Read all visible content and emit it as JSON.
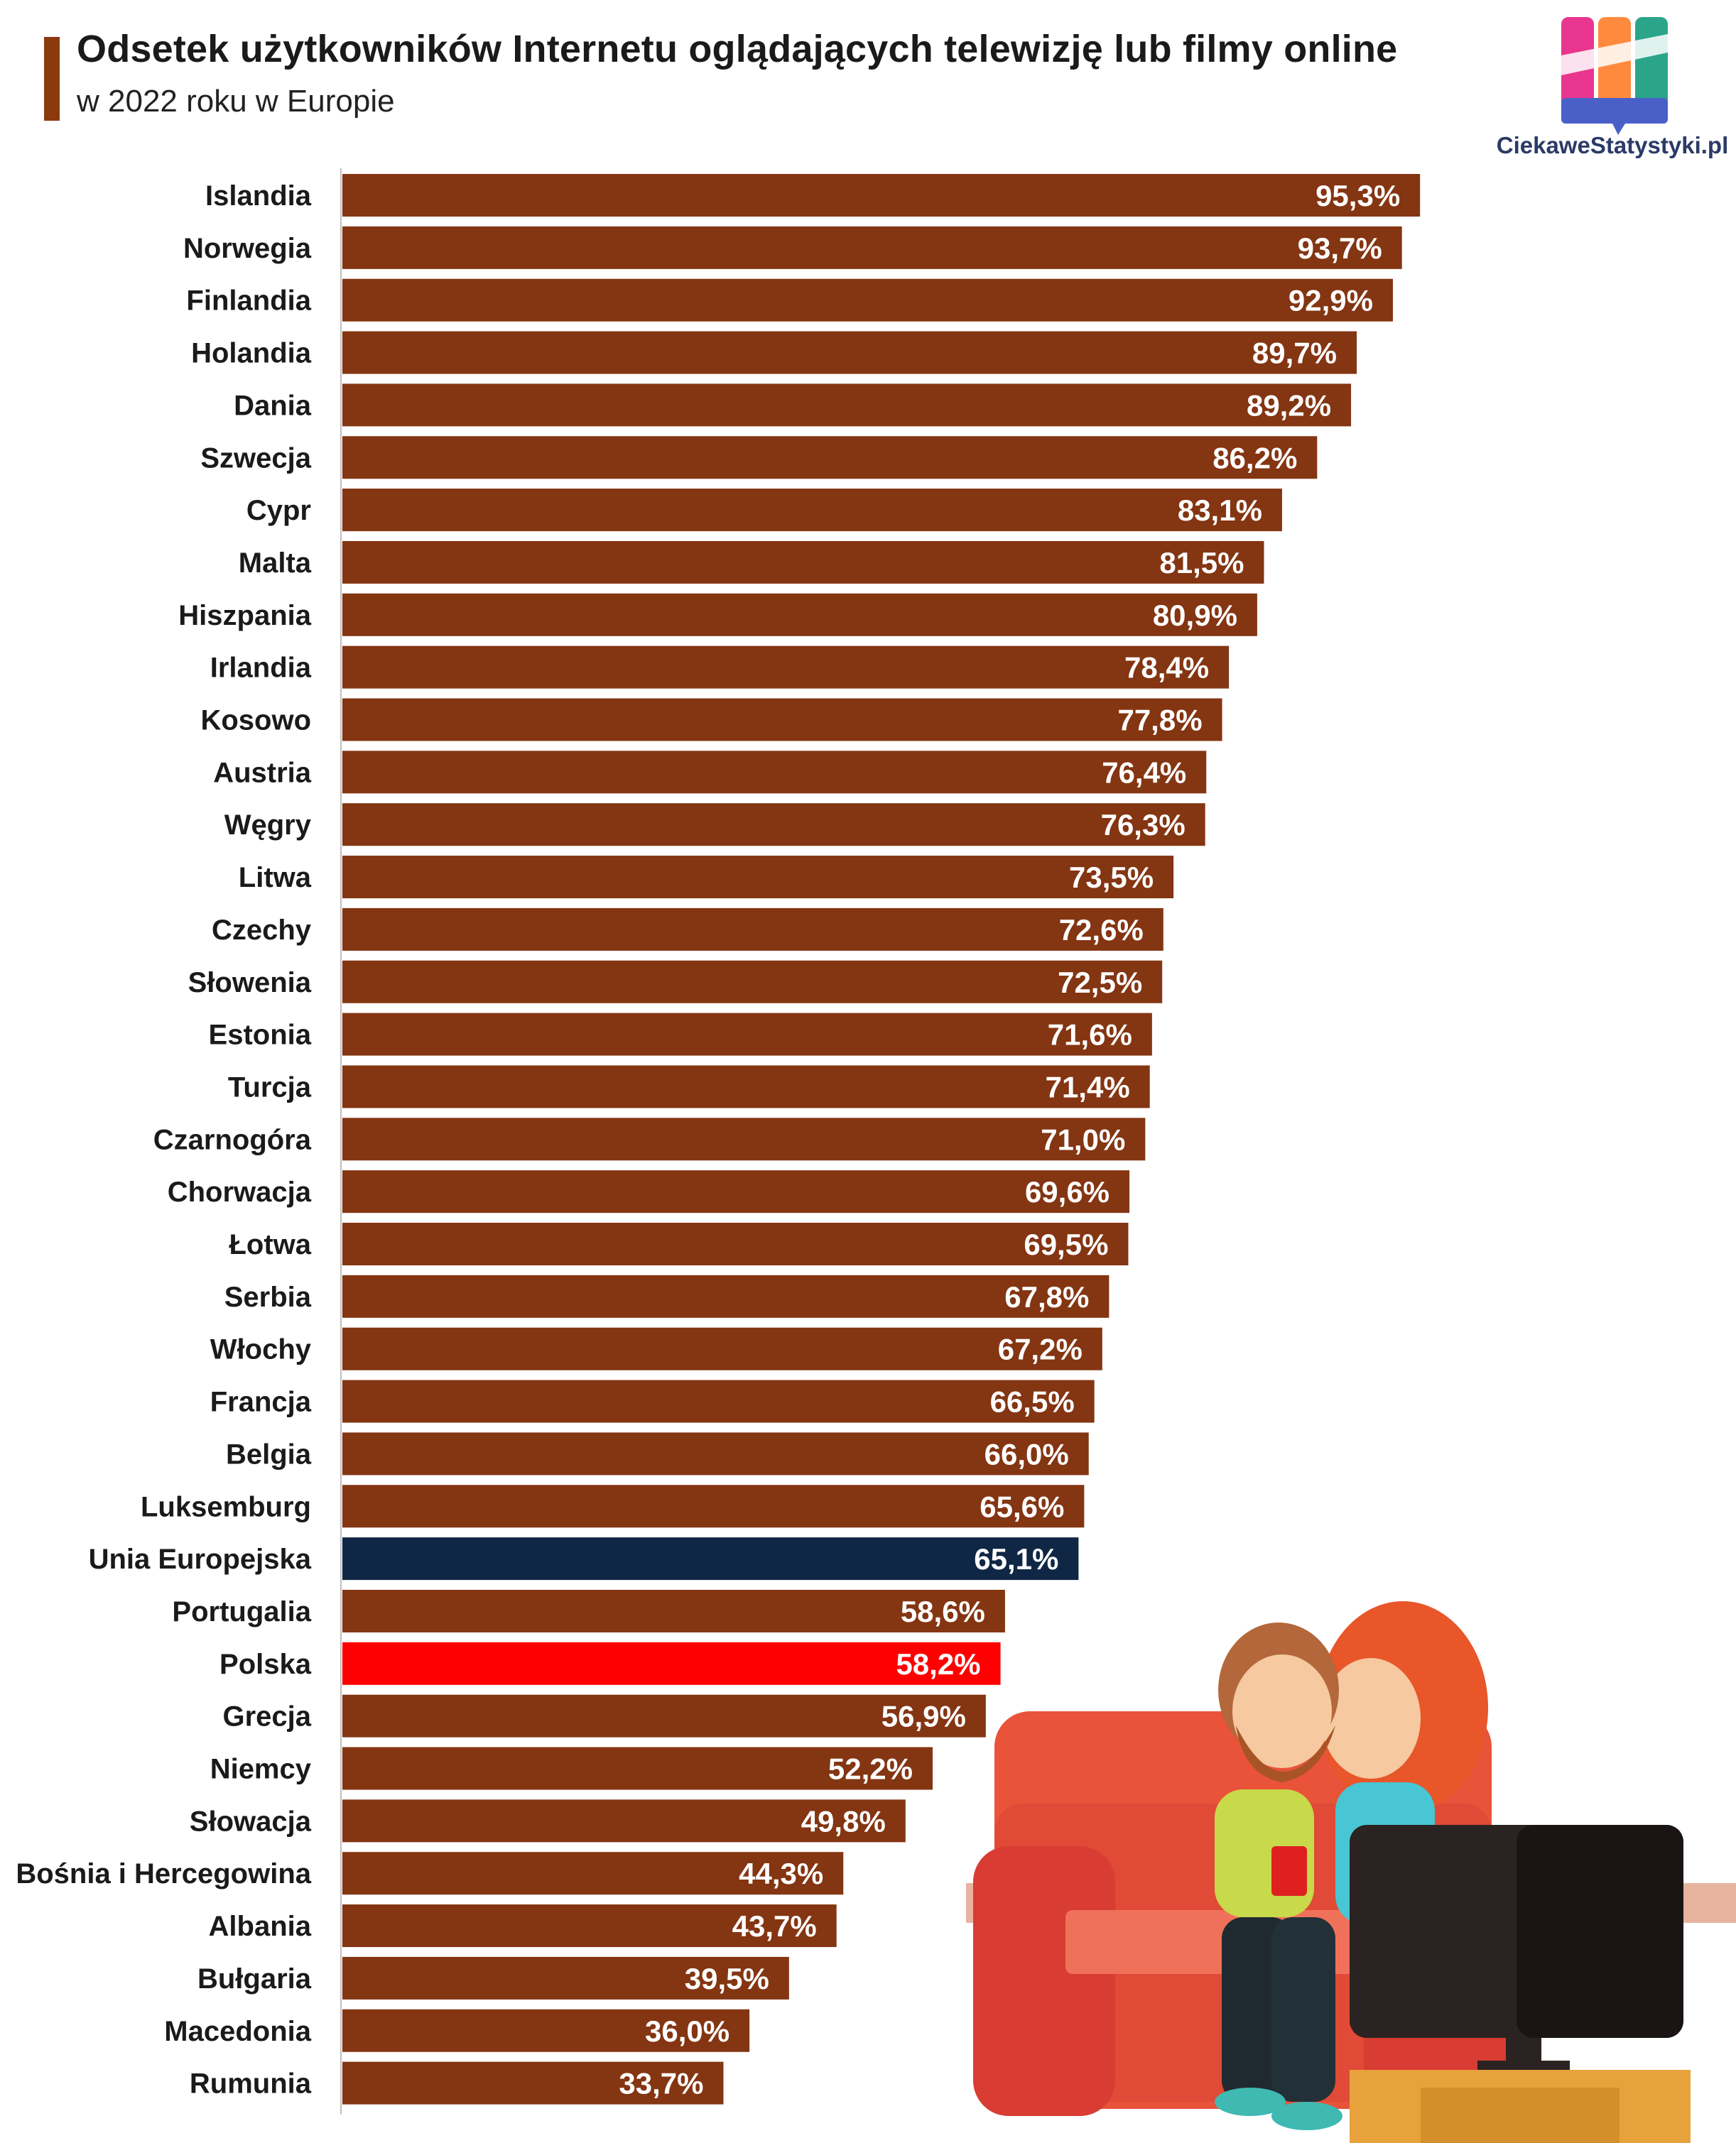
{
  "header": {
    "title": "Odsetek użytkowników Internetu oglądających telewizję lub filmy online",
    "subtitle": "w 2022 roku w Europie",
    "accent_color": "#8B3A0E"
  },
  "logo": {
    "text": "CiekaweStatystyki.pl"
  },
  "colors": {
    "default_bar": "#843512",
    "eu_bar": "#0f2744",
    "poland_bar": "#ff0000",
    "label_text": "#ffffff",
    "category_text": "#1a1a1a"
  },
  "chart_data": {
    "type": "bar",
    "orientation": "horizontal",
    "title": "Odsetek użytkowników Internetu oglądających telewizję lub filmy online",
    "subtitle": "w 2022 roku w Europie",
    "xlabel": "",
    "ylabel": "",
    "xlim": [
      0,
      100
    ],
    "unit": "%",
    "categories": [
      "Islandia",
      "Norwegia",
      "Finlandia",
      "Holandia",
      "Dania",
      "Szwecja",
      "Cypr",
      "Malta",
      "Hiszpania",
      "Irlandia",
      "Kosowo",
      "Austria",
      "Węgry",
      "Litwa",
      "Czechy",
      "Słowenia",
      "Estonia",
      "Turcja",
      "Czarnogóra",
      "Chorwacja",
      "Łotwa",
      "Serbia",
      "Włochy",
      "Francja",
      "Belgia",
      "Luksemburg",
      "Unia Europejska",
      "Portugalia",
      "Polska",
      "Grecja",
      "Niemcy",
      "Słowacja",
      "Bośnia i Hercegowina",
      "Albania",
      "Bułgaria",
      "Macedonia",
      "Rumunia"
    ],
    "values": [
      95.3,
      93.7,
      92.9,
      89.7,
      89.2,
      86.2,
      83.1,
      81.5,
      80.9,
      78.4,
      77.8,
      76.4,
      76.3,
      73.5,
      72.6,
      72.5,
      71.6,
      71.4,
      71.0,
      69.6,
      69.5,
      67.8,
      67.2,
      66.5,
      66.0,
      65.6,
      65.1,
      58.6,
      58.2,
      56.9,
      52.2,
      49.8,
      44.3,
      43.7,
      39.5,
      36.0,
      33.7
    ],
    "labels": [
      "95,3%",
      "93,7%",
      "92,9%",
      "89,7%",
      "89,2%",
      "86,2%",
      "83,1%",
      "81,5%",
      "80,9%",
      "78,4%",
      "77,8%",
      "76,4%",
      "76,3%",
      "73,5%",
      "72,6%",
      "72,5%",
      "71,6%",
      "71,4%",
      "71,0%",
      "69,6%",
      "69,5%",
      "67,8%",
      "67,2%",
      "66,5%",
      "66,0%",
      "65,6%",
      "65,1%",
      "58,6%",
      "58,2%",
      "56,9%",
      "52,2%",
      "49,8%",
      "44,3%",
      "43,7%",
      "39,5%",
      "36,0%",
      "33,7%"
    ],
    "highlights": {
      "Unia Europejska": "eu_bar",
      "Polska": "poland_bar"
    },
    "grid": false,
    "legend": "none"
  }
}
